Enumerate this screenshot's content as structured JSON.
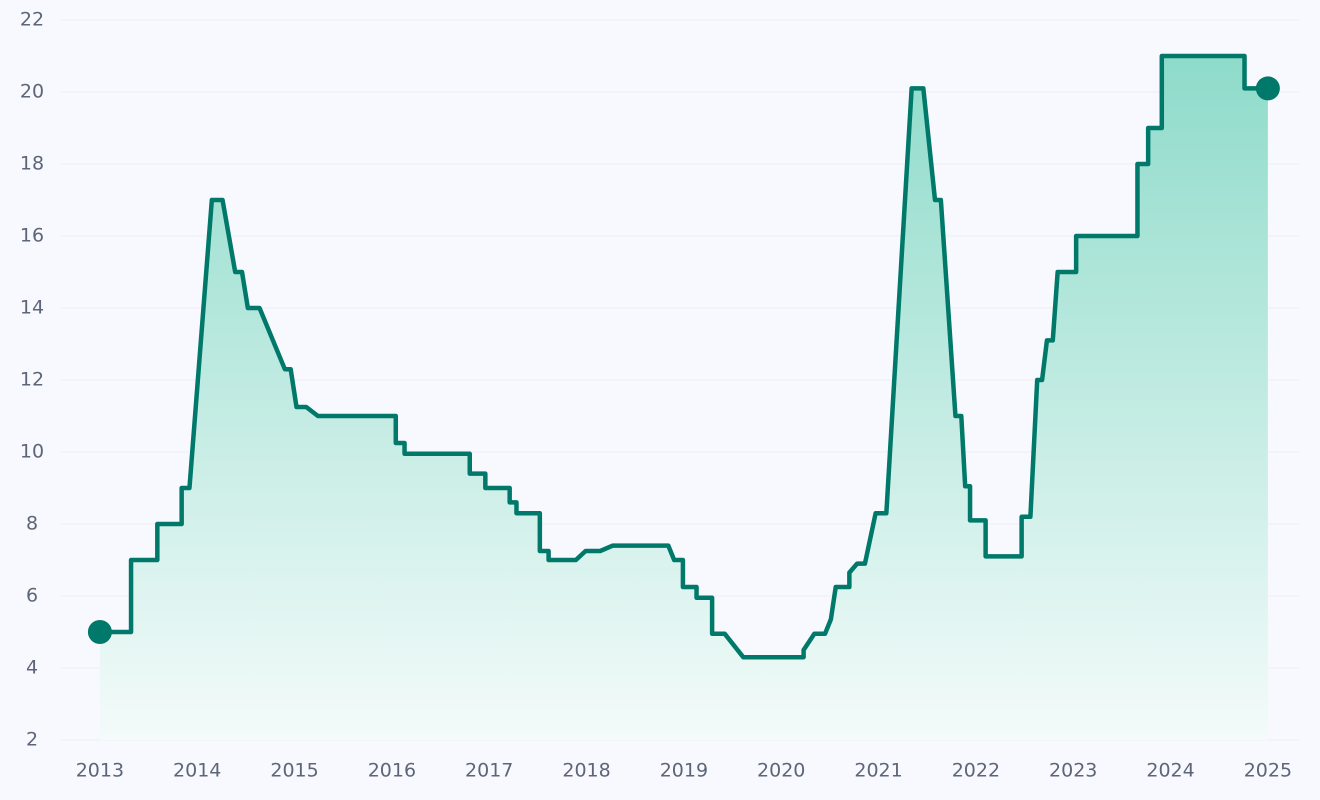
{
  "chart_data": {
    "type": "area-line",
    "color": "#00786a",
    "fill_top": "#8edbca",
    "fill_bottom": "#f4fbfa",
    "grid": true,
    "markers": "endpoints",
    "x": [
      2013.0,
      2013.32,
      2013.32,
      2013.59,
      2013.59,
      2013.84,
      2013.84,
      2013.92,
      2014.15,
      2014.26,
      2014.39,
      2014.46,
      2014.52,
      2014.64,
      2014.9,
      2014.96,
      2015.02,
      2015.12,
      2015.24,
      2016.04,
      2016.04,
      2016.13,
      2016.13,
      2016.8,
      2016.8,
      2016.96,
      2016.96,
      2017.21,
      2017.21,
      2017.28,
      2017.28,
      2017.52,
      2017.52,
      2017.61,
      2017.61,
      2017.89,
      2017.99,
      2018.14,
      2018.27,
      2018.84,
      2018.9,
      2018.99,
      2018.99,
      2019.13,
      2019.13,
      2019.29,
      2019.29,
      2019.42,
      2019.61,
      2020.23,
      2020.23,
      2020.34,
      2020.45,
      2020.51,
      2020.56,
      2020.7,
      2020.7,
      2020.78,
      2020.86,
      2020.97,
      2021.08,
      2021.34,
      2021.46,
      2021.58,
      2021.64,
      2021.79,
      2021.85,
      2021.89,
      2021.94,
      2021.94,
      2022.1,
      2022.1,
      2022.47,
      2022.47,
      2022.56,
      2022.63,
      2022.68,
      2022.73,
      2022.79,
      2022.84,
      2023.03,
      2023.03,
      2023.66,
      2023.66,
      2023.77,
      2023.77,
      2023.91,
      2023.91,
      2024.76,
      2024.76,
      2025.0
    ],
    "values": [
      5,
      5,
      7,
      7,
      8,
      8,
      9,
      9,
      17,
      17,
      15,
      15,
      14,
      14,
      12.3,
      12.3,
      11.25,
      11.25,
      11,
      11,
      10.25,
      10.25,
      9.95,
      9.95,
      9.4,
      9.4,
      9,
      9,
      8.6,
      8.6,
      8.3,
      8.3,
      7.25,
      7.25,
      7,
      7,
      7.25,
      7.25,
      7.4,
      7.4,
      7,
      7,
      6.25,
      6.25,
      5.95,
      5.95,
      4.95,
      4.95,
      4.3,
      4.3,
      4.5,
      4.95,
      4.95,
      5.35,
      6.25,
      6.25,
      6.65,
      6.9,
      6.9,
      8.3,
      8.3,
      20.1,
      20.1,
      17,
      17,
      11,
      11,
      9.05,
      9.05,
      8.1,
      8.1,
      7.1,
      7.1,
      8.2,
      8.2,
      12,
      12,
      13.1,
      13.1,
      15,
      15,
      16,
      16,
      18,
      18,
      19,
      19,
      21,
      21,
      20.1,
      20.1
    ],
    "xlim": [
      2012.59,
      2025.33
    ],
    "xticks": [
      2013,
      2014,
      2015,
      2016,
      2017,
      2018,
      2019,
      2020,
      2021,
      2022,
      2023,
      2024,
      2025
    ],
    "ylim": [
      2,
      22
    ],
    "yticks": [
      2,
      4,
      6,
      8,
      10,
      12,
      14,
      16,
      18,
      20,
      22
    ]
  }
}
